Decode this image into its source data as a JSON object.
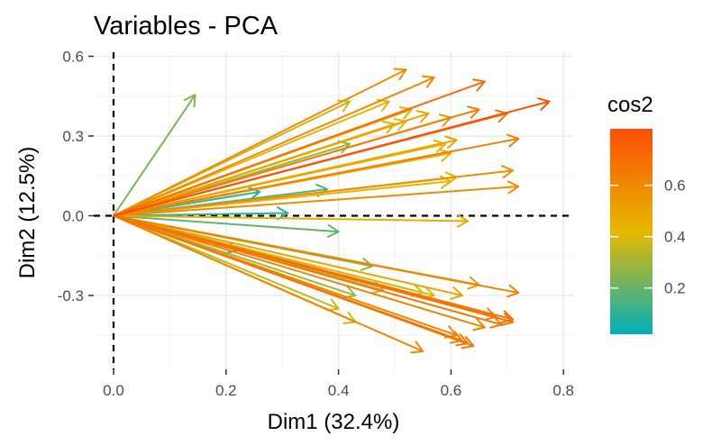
{
  "chart_data": {
    "type": "vector",
    "title": "Variables - PCA",
    "xlabel": "Dim1 (32.4%)",
    "ylabel": "Dim2 (12.5%)",
    "xlim": [
      0,
      0.8
    ],
    "ylim": [
      -0.5,
      0.6
    ],
    "xticks": [
      "0.0",
      "0.2",
      "0.4",
      "0.6",
      "0.8"
    ],
    "yticks": [
      "-0.3",
      "0.0",
      "0.3",
      "0.6"
    ],
    "grid": true,
    "reference_lines": {
      "x": 0,
      "y": 0,
      "style": "dashed"
    },
    "legend": {
      "title": "cos2",
      "labels": [
        "0.2",
        "0.4",
        "0.6"
      ],
      "placement": "right",
      "colors": [
        "#00AFBB",
        "#E7B800",
        "#FC4E07"
      ]
    },
    "variables": [
      {
        "x": 0.145,
        "y": 0.455,
        "cos2": 0.23
      },
      {
        "x": 0.52,
        "y": 0.55,
        "cos2": 0.57
      },
      {
        "x": 0.57,
        "y": 0.52,
        "cos2": 0.58
      },
      {
        "x": 0.66,
        "y": 0.505,
        "cos2": 0.69
      },
      {
        "x": 0.42,
        "y": 0.43,
        "cos2": 0.36
      },
      {
        "x": 0.49,
        "y": 0.43,
        "cos2": 0.42
      },
      {
        "x": 0.775,
        "y": 0.43,
        "cos2": 0.79
      },
      {
        "x": 0.53,
        "y": 0.4,
        "cos2": 0.45
      },
      {
        "x": 0.65,
        "y": 0.4,
        "cos2": 0.62
      },
      {
        "x": 0.7,
        "y": 0.385,
        "cos2": 0.68
      },
      {
        "x": 0.56,
        "y": 0.385,
        "cos2": 0.48
      },
      {
        "x": 0.52,
        "y": 0.355,
        "cos2": 0.42
      },
      {
        "x": 0.5,
        "y": 0.345,
        "cos2": 0.38
      },
      {
        "x": 0.6,
        "y": 0.37,
        "cos2": 0.53
      },
      {
        "x": 0.72,
        "y": 0.29,
        "cos2": 0.62
      },
      {
        "x": 0.61,
        "y": 0.285,
        "cos2": 0.48
      },
      {
        "x": 0.59,
        "y": 0.27,
        "cos2": 0.44
      },
      {
        "x": 0.6,
        "y": 0.235,
        "cos2": 0.43
      },
      {
        "x": 0.42,
        "y": 0.27,
        "cos2": 0.27
      },
      {
        "x": 0.71,
        "y": 0.17,
        "cos2": 0.57
      },
      {
        "x": 0.61,
        "y": 0.145,
        "cos2": 0.44
      },
      {
        "x": 0.6,
        "y": 0.13,
        "cos2": 0.42
      },
      {
        "x": 0.72,
        "y": 0.11,
        "cos2": 0.58
      },
      {
        "x": 0.38,
        "y": 0.1,
        "cos2": 0.17
      },
      {
        "x": 0.26,
        "y": 0.09,
        "cos2": 0.09
      },
      {
        "x": 0.31,
        "y": 0.01,
        "cos2": 0.1
      },
      {
        "x": 0.63,
        "y": -0.02,
        "cos2": 0.45
      },
      {
        "x": 0.4,
        "y": -0.06,
        "cos2": 0.19
      },
      {
        "x": 0.22,
        "y": -0.13,
        "cos2": 0.08
      },
      {
        "x": 0.46,
        "y": -0.19,
        "cos2": 0.25
      },
      {
        "x": 0.43,
        "y": -0.3,
        "cos2": 0.3
      },
      {
        "x": 0.48,
        "y": -0.28,
        "cos2": 0.31
      },
      {
        "x": 0.55,
        "y": -0.29,
        "cos2": 0.37
      },
      {
        "x": 0.57,
        "y": -0.3,
        "cos2": 0.4
      },
      {
        "x": 0.65,
        "y": -0.26,
        "cos2": 0.51
      },
      {
        "x": 0.72,
        "y": -0.29,
        "cos2": 0.6
      },
      {
        "x": 0.62,
        "y": -0.3,
        "cos2": 0.48
      },
      {
        "x": 0.71,
        "y": -0.39,
        "cos2": 0.66
      },
      {
        "x": 0.71,
        "y": -0.4,
        "cos2": 0.67
      },
      {
        "x": 0.68,
        "y": -0.38,
        "cos2": 0.62
      },
      {
        "x": 0.69,
        "y": -0.41,
        "cos2": 0.64
      },
      {
        "x": 0.66,
        "y": -0.42,
        "cos2": 0.6
      },
      {
        "x": 0.61,
        "y": -0.45,
        "cos2": 0.58
      },
      {
        "x": 0.63,
        "y": -0.48,
        "cos2": 0.64
      },
      {
        "x": 0.64,
        "y": -0.49,
        "cos2": 0.65
      },
      {
        "x": 0.62,
        "y": -0.47,
        "cos2": 0.62
      },
      {
        "x": 0.55,
        "y": -0.51,
        "cos2": 0.6
      },
      {
        "x": 0.43,
        "y": -0.4,
        "cos2": 0.38
      },
      {
        "x": 0.4,
        "y": -0.35,
        "cos2": 0.35
      }
    ]
  }
}
